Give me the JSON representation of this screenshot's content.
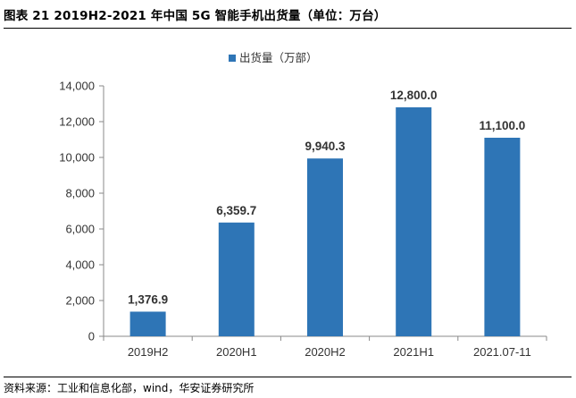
{
  "header": {
    "title": "图表 21 2019H2-2021 年中国 5G 智能手机出货量（单位：万台）"
  },
  "footer": {
    "source": "资料来源：工业和信息化部，wind，华安证券研究所"
  },
  "chart_data": {
    "type": "bar",
    "title": "",
    "xlabel": "",
    "ylabel": "",
    "categories": [
      "2019H2",
      "2020H1",
      "2020H2",
      "2021H1",
      "2021.07-11"
    ],
    "series": [
      {
        "name": "出货量（万部）",
        "values": [
          1376.9,
          6359.7,
          9940.3,
          12800.0,
          11100.0
        ],
        "data_labels": [
          "1,376.9",
          "6,359.7",
          "9,940.3",
          "12,800.0",
          "11,100.0"
        ],
        "color": "#2E75B6"
      }
    ],
    "ylim": [
      0,
      14000
    ],
    "yticks": [
      0,
      2000,
      4000,
      6000,
      8000,
      10000,
      12000,
      14000
    ],
    "ytick_labels": [
      "0",
      "2,000",
      "4,000",
      "6,000",
      "8,000",
      "10,000",
      "12,000",
      "14,000"
    ],
    "grid": false,
    "legend_position": "top-center"
  }
}
